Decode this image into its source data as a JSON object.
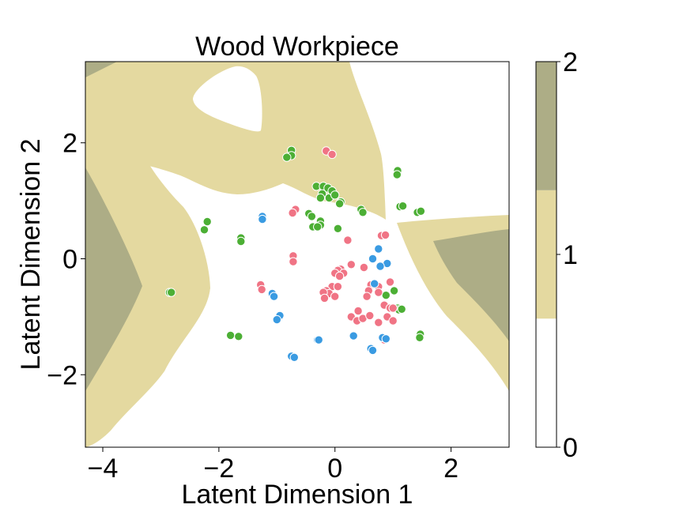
{
  "chart_data": {
    "type": "scatter",
    "title": "Wood Workpiece",
    "xlabel": "Latent Dimension 1",
    "ylabel": "Latent Dimension 2",
    "xlim": [
      -4.3,
      3.0
    ],
    "ylim": [
      -3.25,
      3.4
    ],
    "x_ticks": [
      -4,
      -2,
      0,
      2
    ],
    "x_tick_labels": [
      "−4",
      "−2",
      "0",
      "2"
    ],
    "y_ticks": [
      -2,
      0,
      2
    ],
    "y_tick_labels": [
      "−2",
      "0",
      "2"
    ],
    "grid": false,
    "legend": "none",
    "background_regions": {
      "description": "decision-region contour fill, classes 0/1/2",
      "colors": {
        "0": "#ffffff",
        "1": "#e4d9a0",
        "2": "#adad86"
      }
    },
    "colorbar": {
      "ticks": [
        0,
        1,
        2
      ],
      "tick_labels": [
        "0",
        "1",
        "2"
      ],
      "bands": [
        {
          "from": 0,
          "to": 0.667,
          "color": "#ffffff"
        },
        {
          "from": 0.667,
          "to": 1.333,
          "color": "#e4d9a0"
        },
        {
          "from": 1.333,
          "to": 2.0,
          "color": "#adad86"
        }
      ]
    },
    "series": [
      {
        "color": "#4caf35",
        "points": [
          [
            -0.75,
            1.87
          ],
          [
            -0.75,
            1.78
          ],
          [
            -0.83,
            1.75
          ],
          [
            -0.32,
            1.25
          ],
          [
            -0.2,
            1.25
          ],
          [
            -0.12,
            1.22
          ],
          [
            -0.22,
            1.12
          ],
          [
            -0.25,
            1.05
          ],
          [
            -0.1,
            1.05
          ],
          [
            -0.05,
            1.17
          ],
          [
            0.0,
            1.1
          ],
          [
            0.1,
            0.98
          ],
          [
            0.08,
            0.95
          ],
          [
            -0.45,
            0.78
          ],
          [
            -0.4,
            0.73
          ],
          [
            -0.25,
            0.65
          ],
          [
            -0.25,
            0.58
          ],
          [
            -0.38,
            0.55
          ],
          [
            -0.3,
            0.55
          ],
          [
            0.05,
            0.52
          ],
          [
            0.45,
            0.85
          ],
          [
            0.48,
            0.8
          ],
          [
            1.08,
            1.52
          ],
          [
            1.07,
            1.45
          ],
          [
            1.12,
            0.9
          ],
          [
            1.17,
            0.91
          ],
          [
            1.42,
            0.8
          ],
          [
            1.48,
            0.82
          ],
          [
            -2.2,
            0.64
          ],
          [
            -2.25,
            0.5
          ],
          [
            -1.62,
            0.36
          ],
          [
            -1.62,
            0.3
          ],
          [
            -2.85,
            -0.58
          ],
          [
            -2.82,
            -0.58
          ],
          [
            -1.8,
            -1.32
          ],
          [
            -1.66,
            -1.34
          ],
          [
            0.88,
            -0.63
          ],
          [
            1.02,
            -0.55
          ],
          [
            1.08,
            -0.85
          ],
          [
            1.1,
            -0.88
          ],
          [
            1.15,
            -0.87
          ],
          [
            1.47,
            -1.3
          ],
          [
            1.46,
            -1.36
          ]
        ]
      },
      {
        "color": "#f07485",
        "points": [
          [
            -0.15,
            1.86
          ],
          [
            -0.05,
            1.8
          ],
          [
            -0.68,
            0.85
          ],
          [
            -0.73,
            0.79
          ],
          [
            0.22,
            0.32
          ],
          [
            -0.72,
            0.05
          ],
          [
            -0.72,
            -0.05
          ],
          [
            0.8,
            0.4
          ],
          [
            0.87,
            0.41
          ],
          [
            0.1,
            -0.18
          ],
          [
            0.05,
            -0.2
          ],
          [
            0.15,
            -0.25
          ],
          [
            0.0,
            -0.25
          ],
          [
            0.08,
            -0.3
          ],
          [
            0.28,
            -0.1
          ],
          [
            0.5,
            -0.15
          ],
          [
            -0.05,
            -0.48
          ],
          [
            -0.15,
            -0.55
          ],
          [
            -0.1,
            -0.6
          ],
          [
            0.05,
            -0.48
          ],
          [
            -0.2,
            -0.58
          ],
          [
            -0.18,
            -0.68
          ],
          [
            0.0,
            -0.65
          ],
          [
            0.62,
            -0.45
          ],
          [
            0.75,
            -0.48
          ],
          [
            0.58,
            -0.55
          ],
          [
            0.55,
            -0.65
          ],
          [
            0.75,
            -0.58
          ],
          [
            0.95,
            -0.4
          ],
          [
            0.85,
            -0.8
          ],
          [
            0.95,
            -0.85
          ],
          [
            1.0,
            -0.85
          ],
          [
            -1.28,
            -0.45
          ],
          [
            -1.26,
            -0.53
          ],
          [
            0.4,
            -0.9
          ],
          [
            0.28,
            -1.0
          ],
          [
            0.38,
            -1.07
          ],
          [
            0.48,
            -1.03
          ],
          [
            0.6,
            -0.98
          ],
          [
            0.75,
            -1.1
          ],
          [
            0.9,
            -1.0
          ],
          [
            1.0,
            -1.07
          ],
          [
            0.85,
            -1.4
          ]
        ]
      },
      {
        "color": "#3a9be2",
        "points": [
          [
            -1.25,
            0.73
          ],
          [
            -1.25,
            0.68
          ],
          [
            0.65,
            0.0
          ],
          [
            0.75,
            0.17
          ],
          [
            0.9,
            -0.08
          ],
          [
            0.78,
            -0.13
          ],
          [
            0.68,
            -0.43
          ],
          [
            -1.08,
            -0.6
          ],
          [
            -1.05,
            -0.65
          ],
          [
            -0.95,
            -0.98
          ],
          [
            -1.0,
            -1.05
          ],
          [
            -0.3,
            -1.4
          ],
          [
            -0.28,
            -1.4
          ],
          [
            0.32,
            -1.33
          ],
          [
            0.62,
            -1.55
          ],
          [
            0.65,
            -1.58
          ],
          [
            0.82,
            -1.36
          ],
          [
            0.88,
            -1.38
          ],
          [
            -0.75,
            -1.68
          ],
          [
            -0.7,
            -1.7
          ]
        ]
      }
    ]
  }
}
